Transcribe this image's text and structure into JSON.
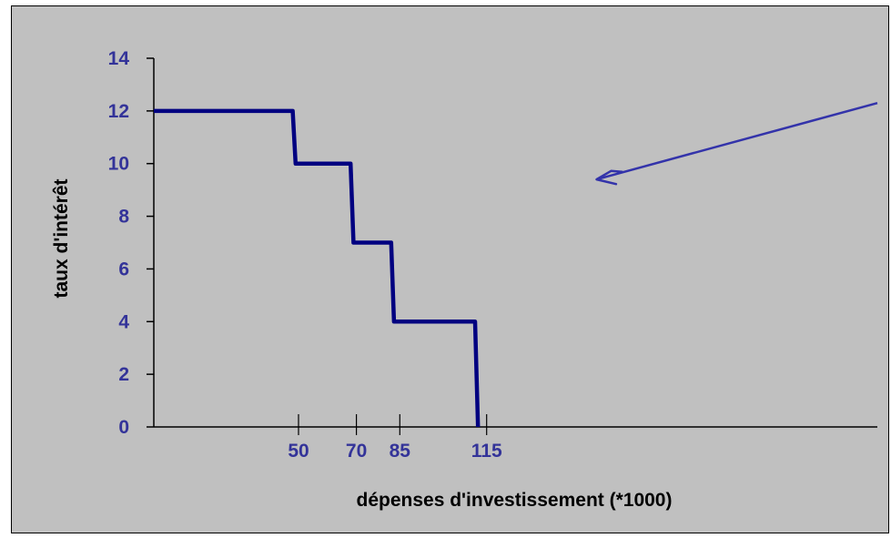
{
  "chart_data": {
    "type": "line",
    "step": true,
    "xlabel": "dépenses d'investissement (*1000)",
    "ylabel": "taux d'intérêt",
    "xlim": [
      0,
      250
    ],
    "ylim": [
      0,
      14
    ],
    "grid": false,
    "y_ticks": [
      0,
      2,
      4,
      6,
      8,
      10,
      12,
      14
    ],
    "x_ticks": [
      {
        "value": 50,
        "label": "50"
      },
      {
        "value": 70,
        "label": "70"
      },
      {
        "value": 85,
        "label": "85"
      },
      {
        "value": 115,
        "label": "115"
      }
    ],
    "series": [
      {
        "points": [
          [
            0,
            12
          ],
          [
            48,
            12
          ],
          [
            49,
            10
          ],
          [
            68,
            10
          ],
          [
            69,
            7
          ],
          [
            82,
            7
          ],
          [
            83,
            4
          ],
          [
            111,
            4
          ],
          [
            112,
            0
          ]
        ]
      }
    ],
    "annotation": {
      "type": "arrow",
      "from": [
        250,
        12.3
      ],
      "to": [
        153,
        9.4
      ]
    },
    "colors": {
      "series": "#000080",
      "text": "#333399",
      "axis": "#000000",
      "arrow": "#3333aa",
      "background": "#c0c0c0"
    }
  }
}
